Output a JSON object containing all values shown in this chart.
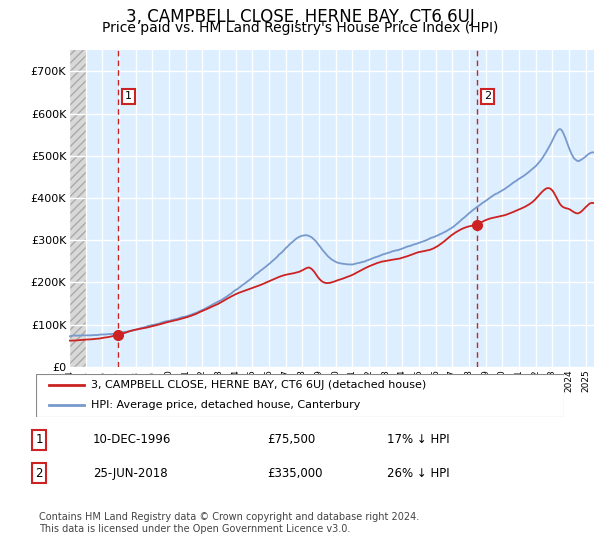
{
  "title": "3, CAMPBELL CLOSE, HERNE BAY, CT6 6UJ",
  "subtitle": "Price paid vs. HM Land Registry's House Price Index (HPI)",
  "title_fontsize": 12,
  "subtitle_fontsize": 10,
  "ylim": [
    0,
    750000
  ],
  "yticks": [
    0,
    100000,
    200000,
    300000,
    400000,
    500000,
    600000,
    700000
  ],
  "ytick_labels": [
    "£0",
    "£100K",
    "£200K",
    "£300K",
    "£400K",
    "£500K",
    "£600K",
    "£700K"
  ],
  "xlim_start": 1994.0,
  "xlim_end": 2025.5,
  "hpi_color": "#7799cc",
  "price_color": "#cc2222",
  "sale1_year": 1996.95,
  "sale1_price": 75500,
  "sale1_label": "1",
  "sale2_year": 2018.48,
  "sale2_price": 335000,
  "sale2_label": "2",
  "legend_line1": "3, CAMPBELL CLOSE, HERNE BAY, CT6 6UJ (detached house)",
  "legend_line2": "HPI: Average price, detached house, Canterbury",
  "note1_num": "1",
  "note1_date": "10-DEC-1996",
  "note1_price": "£75,500",
  "note1_hpi": "17% ↓ HPI",
  "note2_num": "2",
  "note2_date": "25-JUN-2018",
  "note2_price": "£335,000",
  "note2_hpi": "26% ↓ HPI",
  "footer": "Contains HM Land Registry data © Crown copyright and database right 2024.\nThis data is licensed under the Open Government Licence v3.0.",
  "bg_color": "#ddeeff",
  "hatch_bg": "#e0e0e0",
  "grid_color": "#ffffff",
  "hatch_end_year": 1995.0
}
